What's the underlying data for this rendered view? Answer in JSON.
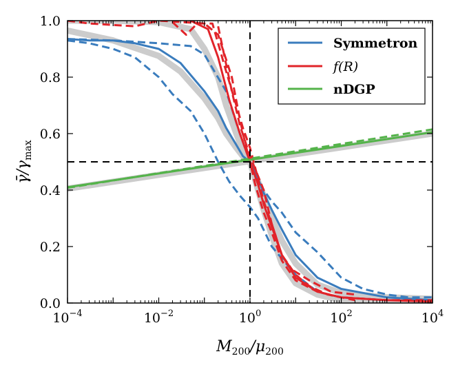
{
  "chart_data": {
    "type": "line",
    "xscale": "log",
    "xlim": [
      0.0001,
      10000
    ],
    "ylim": [
      0.0,
      1.0
    ],
    "xlabel_main": "M",
    "xlabel_sub1": "200",
    "xlabel_sep": "/μ",
    "xlabel_sub2": "200",
    "ylabel_main": "γ̄/γ",
    "ylabel_sub": "max",
    "x_ticks": [
      {
        "value": 0.0001,
        "base": "10",
        "exp": "−4"
      },
      {
        "value": 0.01,
        "base": "10",
        "exp": "−2"
      },
      {
        "value": 1,
        "base": "10",
        "exp": "0"
      },
      {
        "value": 100,
        "base": "10",
        "exp": "2"
      },
      {
        "value": 10000,
        "base": "10",
        "exp": "4"
      }
    ],
    "y_ticks": [
      {
        "value": 0.0,
        "label": "0.0"
      },
      {
        "value": 0.2,
        "label": "0.2"
      },
      {
        "value": 0.4,
        "label": "0.4"
      },
      {
        "value": 0.6,
        "label": "0.6"
      },
      {
        "value": 0.8,
        "label": "0.8"
      },
      {
        "value": 1.0,
        "label": "1.0"
      }
    ],
    "reference_lines": {
      "x": 1,
      "y": 0.5
    },
    "legend": {
      "placement": "top-right",
      "entries": [
        {
          "label": "Symmetron",
          "color": "#3a7cbd",
          "italic": false
        },
        {
          "label": "f(R)",
          "color": "#e1242a",
          "italic": true
        },
        {
          "label": "nDGP",
          "color": "#54b34a",
          "italic": false
        }
      ]
    },
    "series": [
      {
        "id": "sym-fit",
        "color": "#cccccc",
        "style": "thick",
        "x": [
          0.0001,
          0.001,
          0.01,
          0.03,
          0.1,
          0.2,
          0.3,
          0.5,
          0.7,
          1,
          1.5,
          2,
          3,
          5,
          10,
          30,
          100,
          1000,
          10000
        ],
        "y": [
          0.965,
          0.93,
          0.875,
          0.82,
          0.725,
          0.655,
          0.6,
          0.55,
          0.52,
          0.5,
          0.43,
          0.38,
          0.3,
          0.22,
          0.14,
          0.065,
          0.035,
          0.02,
          0.015
        ]
      },
      {
        "id": "fr-fit",
        "color": "#cccccc",
        "style": "thick",
        "x": [
          0.0001,
          0.001,
          0.01,
          0.05,
          0.1,
          0.2,
          0.3,
          0.5,
          0.7,
          1,
          1.5,
          2,
          3,
          5,
          10,
          30,
          100,
          1000,
          10000
        ],
        "y": [
          1.0,
          1.0,
          0.995,
          0.97,
          0.9,
          0.8,
          0.7,
          0.6,
          0.54,
          0.5,
          0.4,
          0.33,
          0.24,
          0.14,
          0.07,
          0.03,
          0.01,
          0.003,
          0.001
        ]
      },
      {
        "id": "ndgp-fit",
        "color": "#cccccc",
        "style": "thick",
        "x": [
          0.0001,
          10000
        ],
        "y": [
          0.405,
          0.6
        ]
      },
      {
        "id": "sym-dash-low",
        "color": "#3a7cbd",
        "style": "dashed",
        "x": [
          0.0001,
          0.0003,
          0.001,
          0.003,
          0.01,
          0.02,
          0.05,
          0.1,
          0.2,
          0.35,
          0.6,
          1,
          1.5,
          3,
          10,
          30,
          100,
          1000,
          10000
        ],
        "y": [
          0.93,
          0.92,
          0.9,
          0.87,
          0.8,
          0.74,
          0.68,
          0.6,
          0.5,
          0.43,
          0.38,
          0.34,
          0.3,
          0.2,
          0.1,
          0.04,
          0.02,
          0.01,
          0.01
        ]
      },
      {
        "id": "sym-dash-high",
        "color": "#3a7cbd",
        "style": "dashed",
        "x": [
          0.0001,
          0.001,
          0.01,
          0.05,
          0.1,
          0.3,
          0.6,
          1,
          1.5,
          2,
          3,
          5,
          10,
          30,
          100,
          300,
          1000,
          3000,
          10000
        ],
        "y": [
          0.935,
          0.93,
          0.92,
          0.91,
          0.88,
          0.75,
          0.6,
          0.5,
          0.44,
          0.4,
          0.36,
          0.32,
          0.25,
          0.18,
          0.09,
          0.05,
          0.03,
          0.02,
          0.02
        ]
      },
      {
        "id": "sym-solid",
        "color": "#3a7cbd",
        "style": "solid",
        "x": [
          0.0001,
          0.0003,
          0.001,
          0.003,
          0.01,
          0.03,
          0.1,
          0.2,
          0.3,
          0.5,
          0.7,
          1,
          1.5,
          2,
          3,
          5,
          10,
          30,
          100,
          1000,
          10000
        ],
        "y": [
          0.935,
          0.93,
          0.93,
          0.92,
          0.9,
          0.85,
          0.75,
          0.68,
          0.62,
          0.56,
          0.52,
          0.5,
          0.44,
          0.39,
          0.33,
          0.26,
          0.17,
          0.09,
          0.05,
          0.02,
          0.01
        ]
      },
      {
        "id": "fr-dash-a",
        "color": "#e1242a",
        "style": "dashed",
        "x": [
          0.02,
          0.04,
          0.07,
          0.15,
          0.3,
          0.5,
          0.7,
          1,
          1.5,
          2,
          3,
          5,
          10,
          20,
          50,
          100,
          200
        ],
        "y": [
          0.995,
          0.95,
          0.99,
          0.99,
          0.82,
          0.7,
          0.62,
          0.55,
          0.44,
          0.36,
          0.28,
          0.17,
          0.1,
          0.06,
          0.03,
          0.02,
          0.01
        ]
      },
      {
        "id": "fr-dash-b",
        "color": "#e1242a",
        "style": "dashed",
        "x": [
          0.0001,
          0.0003,
          0.003,
          0.01,
          0.1,
          0.2,
          0.4,
          0.6,
          0.8,
          1,
          1.3,
          2,
          3,
          5,
          10,
          30,
          100,
          1000,
          10000
        ],
        "y": [
          1.0,
          0.99,
          0.98,
          1.0,
          0.99,
          0.95,
          0.8,
          0.65,
          0.56,
          0.5,
          0.42,
          0.32,
          0.25,
          0.15,
          0.08,
          0.04,
          0.02,
          0.01,
          0.01
        ]
      },
      {
        "id": "fr-solid",
        "color": "#e1242a",
        "style": "solid",
        "x": [
          0.05,
          0.12,
          0.2,
          0.35,
          0.6,
          1,
          1.5,
          2,
          3,
          5,
          10,
          30,
          100,
          1000,
          10000
        ],
        "y": [
          1.0,
          0.97,
          0.87,
          0.72,
          0.6,
          0.5,
          0.42,
          0.35,
          0.27,
          0.17,
          0.09,
          0.04,
          0.02,
          0.01,
          0.005
        ]
      },
      {
        "id": "fr-dash-c",
        "color": "#e1242a",
        "style": "dashed",
        "x": [
          0.2,
          0.4,
          0.6,
          1,
          2,
          3,
          5,
          8,
          20,
          60,
          200
        ],
        "y": [
          0.98,
          0.75,
          0.63,
          0.52,
          0.4,
          0.28,
          0.17,
          0.12,
          0.08,
          0.04,
          0.03
        ]
      },
      {
        "id": "ndgp-solid",
        "color": "#54b34a",
        "style": "solid",
        "x": [
          0.0001,
          10000
        ],
        "y": [
          0.41,
          0.605
        ]
      },
      {
        "id": "ndgp-dash",
        "color": "#54b34a",
        "style": "dashed",
        "x": [
          0.0001,
          10000
        ],
        "y": [
          0.408,
          0.615
        ]
      }
    ]
  }
}
